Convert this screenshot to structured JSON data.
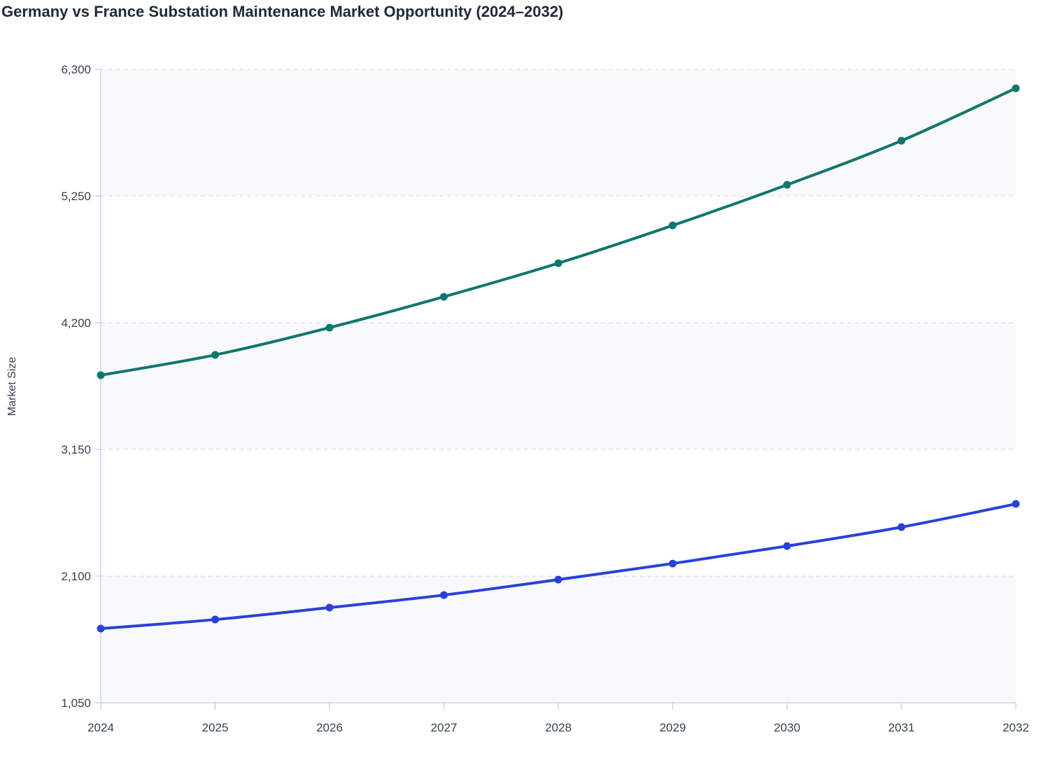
{
  "chart_data": {
    "type": "line",
    "title": "Germany vs France Substation Maintenance Market Opportunity (2024–2032)",
    "xlabel": "",
    "ylabel": "Market Size",
    "categories": [
      "2024",
      "2025",
      "2026",
      "2027",
      "2028",
      "2029",
      "2030",
      "2031",
      "2032"
    ],
    "ylim": [
      1050,
      6300
    ],
    "yticks": [
      1050,
      2100,
      3150,
      4200,
      5250,
      6300
    ],
    "ytick_labels": [
      "1,050",
      "2,100",
      "3,150",
      "4,200",
      "5,250",
      "6,300"
    ],
    "grid": "horizontal dashed",
    "legend": "none",
    "series": [
      {
        "color": "#0f766e",
        "values": [
          3765,
          3933,
          4159,
          4415,
          4693,
          5006,
          5343,
          5708,
          6143
        ]
      },
      {
        "color": "#2941d9",
        "values": [
          1665,
          1740,
          1839,
          1943,
          2071,
          2204,
          2349,
          2506,
          2698
        ]
      }
    ]
  }
}
